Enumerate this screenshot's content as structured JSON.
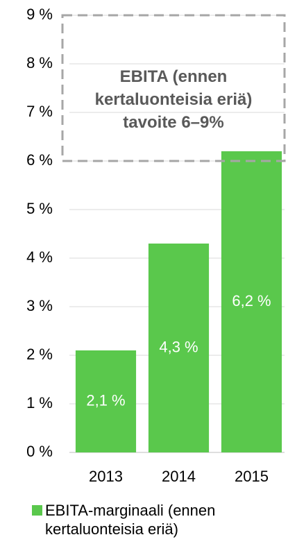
{
  "chart_data": {
    "type": "bar",
    "categories": [
      "2013",
      "2014",
      "2015"
    ],
    "series": [
      {
        "name": "EBITA-marginaali (ennen kertaluonteisia eriä)",
        "color": "#5ac84c",
        "values": [
          2.1,
          4.3,
          6.2
        ],
        "value_labels": [
          "2,1 %",
          "4,3 %",
          "6,2 %"
        ]
      }
    ],
    "ylim": [
      0,
      9
    ],
    "yticks": [
      {
        "value": 0,
        "label": "0 %"
      },
      {
        "value": 1,
        "label": "1 %"
      },
      {
        "value": 2,
        "label": "2 %"
      },
      {
        "value": 3,
        "label": "3 %"
      },
      {
        "value": 4,
        "label": "4 %"
      },
      {
        "value": 5,
        "label": "5 %"
      },
      {
        "value": 6,
        "label": "6 %"
      },
      {
        "value": 7,
        "label": "7 %"
      },
      {
        "value": 8,
        "label": "8 %"
      },
      {
        "value": 9,
        "label": "9 %"
      }
    ],
    "grid": true,
    "annotation": "EBITA (ennen kertaluonteisia eriä) tavoite 6–9%",
    "target_range": [
      6,
      9
    ],
    "legend": "bottom"
  }
}
